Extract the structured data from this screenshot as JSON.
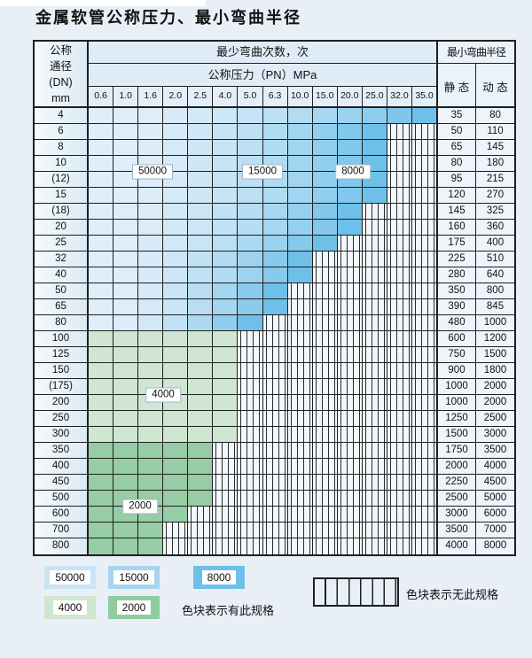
{
  "page": {
    "title": "金属软管公称压力、最小弯曲半径"
  },
  "table": {
    "header": {
      "dn_lines": [
        "公称",
        "通径",
        "(DN)",
        "mm"
      ],
      "min_bend_cycles": "最少弯曲次数，次",
      "nominal_pressure": "公称压力（PN）MPa",
      "min_bend_radius": "最小弯曲半径",
      "static": "静 态",
      "dynamic": "动 态"
    },
    "pressure_columns": [
      "0.6",
      "1.0",
      "1.6",
      "2.0",
      "2.5",
      "4.0",
      "5.0",
      "6.3",
      "10.0",
      "15.0",
      "20.0",
      "25.0",
      "32.0",
      "35.0"
    ],
    "rows": [
      {
        "dn": "4",
        "colored_cols": 14,
        "zone": "blue",
        "static": "35",
        "dynamic": "80"
      },
      {
        "dn": "6",
        "colored_cols": 12,
        "zone": "blue",
        "static": "50",
        "dynamic": "110"
      },
      {
        "dn": "8",
        "colored_cols": 12,
        "zone": "blue",
        "static": "65",
        "dynamic": "145"
      },
      {
        "dn": "10",
        "colored_cols": 12,
        "zone": "blue",
        "static": "80",
        "dynamic": "180"
      },
      {
        "dn": "(12)",
        "colored_cols": 12,
        "zone": "blue",
        "static": "95",
        "dynamic": "215"
      },
      {
        "dn": "15",
        "colored_cols": 12,
        "zone": "blue",
        "static": "120",
        "dynamic": "270"
      },
      {
        "dn": "(18)",
        "colored_cols": 11,
        "zone": "blue",
        "static": "145",
        "dynamic": "325"
      },
      {
        "dn": "20",
        "colored_cols": 11,
        "zone": "blue",
        "static": "160",
        "dynamic": "360"
      },
      {
        "dn": "25",
        "colored_cols": 10,
        "zone": "blue",
        "static": "175",
        "dynamic": "400"
      },
      {
        "dn": "32",
        "colored_cols": 9,
        "zone": "blue",
        "static": "225",
        "dynamic": "510"
      },
      {
        "dn": "40",
        "colored_cols": 9,
        "zone": "blue",
        "static": "280",
        "dynamic": "640"
      },
      {
        "dn": "50",
        "colored_cols": 8,
        "zone": "blue",
        "static": "350",
        "dynamic": "800"
      },
      {
        "dn": "65",
        "colored_cols": 8,
        "zone": "blue",
        "static": "390",
        "dynamic": "845"
      },
      {
        "dn": "80",
        "colored_cols": 7,
        "zone": "blue",
        "static": "480",
        "dynamic": "1000"
      },
      {
        "dn": "100",
        "colored_cols": 6,
        "zone": "green_light",
        "static": "600",
        "dynamic": "1200"
      },
      {
        "dn": "125",
        "colored_cols": 6,
        "zone": "green_light",
        "static": "750",
        "dynamic": "1500"
      },
      {
        "dn": "150",
        "colored_cols": 6,
        "zone": "green_light",
        "static": "900",
        "dynamic": "1800"
      },
      {
        "dn": "(175)",
        "colored_cols": 6,
        "zone": "green_light",
        "static": "1000",
        "dynamic": "2000"
      },
      {
        "dn": "200",
        "colored_cols": 6,
        "zone": "green_light",
        "static": "1000",
        "dynamic": "2000"
      },
      {
        "dn": "250",
        "colored_cols": 6,
        "zone": "green_light",
        "static": "1250",
        "dynamic": "2500"
      },
      {
        "dn": "300",
        "colored_cols": 6,
        "zone": "green_light",
        "static": "1500",
        "dynamic": "3000"
      },
      {
        "dn": "350",
        "colored_cols": 5,
        "zone": "green_dark",
        "static": "1750",
        "dynamic": "3500"
      },
      {
        "dn": "400",
        "colored_cols": 5,
        "zone": "green_dark",
        "static": "2000",
        "dynamic": "4000"
      },
      {
        "dn": "450",
        "colored_cols": 5,
        "zone": "green_dark",
        "static": "2250",
        "dynamic": "4500"
      },
      {
        "dn": "500",
        "colored_cols": 5,
        "zone": "green_dark",
        "static": "2500",
        "dynamic": "5000"
      },
      {
        "dn": "600",
        "colored_cols": 4,
        "zone": "green_dark",
        "static": "3000",
        "dynamic": "6000"
      },
      {
        "dn": "700",
        "colored_cols": 3,
        "zone": "green_dark",
        "static": "3500",
        "dynamic": "7000"
      },
      {
        "dn": "800",
        "colored_cols": 3,
        "zone": "green_dark",
        "static": "4000",
        "dynamic": "8000"
      }
    ],
    "cycle_labels": [
      {
        "text": "50000",
        "after_dn": "10"
      },
      {
        "text": "15000",
        "after_dn": "10"
      },
      {
        "text": "8000",
        "after_dn": "10"
      },
      {
        "text": "4000",
        "after_dn": "(175)"
      },
      {
        "text": "2000",
        "after_dn": "500"
      }
    ]
  },
  "legend": {
    "swatches": [
      {
        "value": "50000",
        "color": "#c9e4f3"
      },
      {
        "value": "15000",
        "color": "#a8d4ef"
      },
      {
        "value": "8000",
        "color": "#6fc0e9"
      },
      {
        "value": "4000",
        "color": "#cfe6d0"
      },
      {
        "value": "2000",
        "color": "#92cba0"
      }
    ],
    "has_spec_text": "色块表示有此规格",
    "no_spec_text": "色块表示无此规格"
  },
  "colors": {
    "blue_light": "#e0eef9",
    "blue_dark": "#6ec0e9",
    "green_light": "#cfe6d2",
    "green_dark": "#97cda4",
    "grid": "#1f1f1f"
  }
}
